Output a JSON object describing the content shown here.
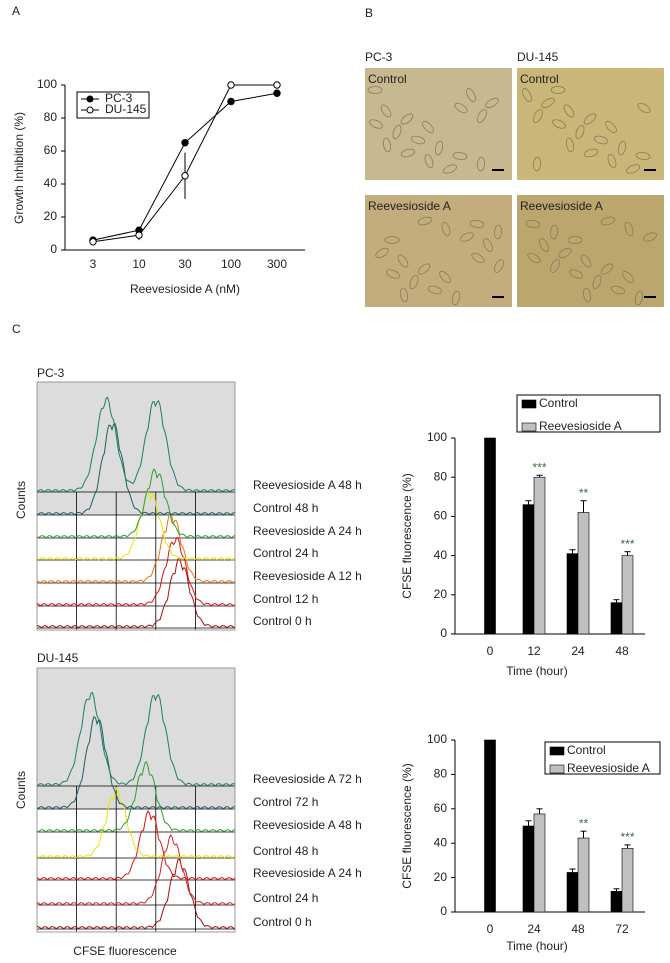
{
  "chart_data": [
    {
      "type": "line",
      "panel_label": "A",
      "categories": [
        "3",
        "10",
        "30",
        "100",
        "300"
      ],
      "xlabel": "Reevesioside A (nM)",
      "ylabel": "Growth Inhibition (%)",
      "ylim": [
        0,
        100
      ],
      "yticks": [
        0,
        20,
        40,
        60,
        80,
        100
      ],
      "legend": "upper-left",
      "series": [
        {
          "name": "PC-3",
          "color": "#000000",
          "marker": "filled",
          "values": [
            6,
            12,
            65,
            90,
            95
          ],
          "errors": [
            1,
            2,
            2,
            2,
            2
          ]
        },
        {
          "name": "DU-145",
          "color": "#000000",
          "marker": "open",
          "values": [
            5,
            9,
            45,
            100,
            100
          ],
          "errors": [
            1,
            3,
            14,
            0,
            0
          ]
        }
      ]
    },
    {
      "type": "image-grid",
      "panel_label": "B",
      "columns": [
        "PC-3",
        "DU-145"
      ],
      "rows": [
        "Control",
        "Reevesioside A"
      ]
    },
    {
      "type": "overlay",
      "panel_label": "C",
      "title": "PC-3",
      "ylabel": "Counts",
      "series": [
        {
          "name": "Reevesioside A 48 h",
          "color": "#1f7f5f"
        },
        {
          "name": "Control 48 h",
          "color": "#1d5f66"
        },
        {
          "name": "Reevesioside A 24 h",
          "color": "#2e9e2e"
        },
        {
          "name": "Control 24 h",
          "color": "#e6e600"
        },
        {
          "name": "Reevesioside A 12 h",
          "color": "#f07010"
        },
        {
          "name": "Control 12 h",
          "color": "#e01010"
        },
        {
          "name": "Control 0 h",
          "color": "#a01010"
        }
      ]
    },
    {
      "type": "bar",
      "categories": [
        "0",
        "12",
        "24",
        "48"
      ],
      "xlabel": "Time (hour)",
      "ylabel": "CFSE fluorescence (%)",
      "ylim": [
        0,
        100
      ],
      "yticks": [
        0,
        20,
        40,
        60,
        80,
        100
      ],
      "legend": "upper-right",
      "series": [
        {
          "name": "Control",
          "color": "#000000",
          "values": [
            100,
            66,
            41,
            16
          ],
          "errors": [
            0,
            2,
            2,
            1.5
          ]
        },
        {
          "name": "Reevesioside A",
          "color": "#c0c0c0",
          "values": [
            null,
            80,
            62,
            40
          ],
          "errors": [
            null,
            1,
            6,
            2
          ],
          "significance": [
            null,
            "***",
            "**",
            "***"
          ]
        }
      ]
    },
    {
      "type": "overlay",
      "title": "DU-145",
      "ylabel": "Counts",
      "xlabel": "CFSE fluorescence",
      "series": [
        {
          "name": "Reevesioside A 72 h",
          "color": "#1f7f5f"
        },
        {
          "name": "Control 72 h",
          "color": "#1d5f66"
        },
        {
          "name": "Reevesioside A 48 h",
          "color": "#2e9e2e"
        },
        {
          "name": "Control 48 h",
          "color": "#e6e600"
        },
        {
          "name": "Reevesioside A 24 h",
          "color": "#e01010"
        },
        {
          "name": "Control 24 h",
          "color": "#e02020"
        },
        {
          "name": "Control 0 h",
          "color": "#a01010"
        }
      ]
    },
    {
      "type": "bar",
      "categories": [
        "0",
        "24",
        "48",
        "72"
      ],
      "xlabel": "Time (hour)",
      "ylabel": "CFSE fluorescence (%)",
      "ylim": [
        0,
        100
      ],
      "yticks": [
        0,
        20,
        40,
        60,
        80,
        100
      ],
      "legend": "upper-right",
      "series": [
        {
          "name": "Control",
          "color": "#000000",
          "values": [
            100,
            50,
            23,
            12
          ],
          "errors": [
            0,
            3,
            2,
            1.5
          ]
        },
        {
          "name": "Reevesioside A",
          "color": "#c0c0c0",
          "values": [
            null,
            57,
            43,
            37
          ],
          "errors": [
            null,
            3,
            4,
            2
          ],
          "significance": [
            null,
            null,
            "**",
            "***"
          ]
        }
      ]
    }
  ]
}
